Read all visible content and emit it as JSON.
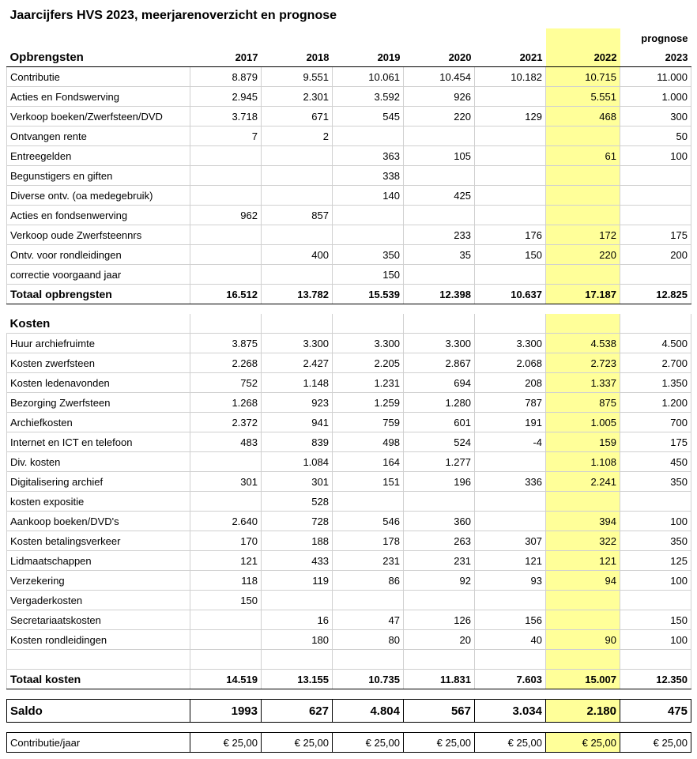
{
  "title": "Jaarcijfers HVS 2023, meerjarenoverzicht en prognose",
  "colors": {
    "highlight_bg": "#ffff99",
    "grid": "#d0d0d0",
    "text": "#000000",
    "bg": "#ffffff"
  },
  "years": [
    "2017",
    "2018",
    "2019",
    "2020",
    "2021",
    "2022",
    "2023"
  ],
  "prognose_label": "prognose",
  "highlight_year_index": 5,
  "sections": {
    "opbrengsten": {
      "header": "Opbrengsten",
      "rows": [
        {
          "label": "Contributie",
          "v": [
            "8.879",
            "9.551",
            "10.061",
            "10.454",
            "10.182",
            "10.715",
            "11.000"
          ]
        },
        {
          "label": "Acties en Fondswerving",
          "v": [
            "2.945",
            "2.301",
            "3.592",
            "926",
            "",
            "5.551",
            "1.000"
          ]
        },
        {
          "label": "Verkoop boeken/Zwerfsteen/DVD",
          "v": [
            "3.718",
            "671",
            "545",
            "220",
            "129",
            "468",
            "300"
          ]
        },
        {
          "label": "Ontvangen rente",
          "v": [
            "7",
            "2",
            "",
            "",
            "",
            "",
            "50"
          ]
        },
        {
          "label": "Entreegelden",
          "v": [
            "",
            "",
            "363",
            "105",
            "",
            "61",
            "100"
          ]
        },
        {
          "label": "Begunstigers en giften",
          "v": [
            "",
            "",
            "338",
            "",
            "",
            "",
            ""
          ]
        },
        {
          "label": "Diverse ontv. (oa medegebruik)",
          "v": [
            "",
            "",
            "140",
            "425",
            "",
            "",
            ""
          ]
        },
        {
          "label": "Acties en fondsenwerving",
          "v": [
            "962",
            "857",
            "",
            "",
            "",
            "",
            ""
          ]
        },
        {
          "label": "Verkoop oude Zwerfsteennrs",
          "v": [
            "",
            "",
            "",
            "233",
            "176",
            "172",
            "175"
          ]
        },
        {
          "label": "Ontv. voor rondleidingen",
          "v": [
            "",
            "400",
            "350",
            "35",
            "150",
            "220",
            "200"
          ]
        },
        {
          "label": "correctie voorgaand jaar",
          "v": [
            "",
            "",
            "150",
            "",
            "",
            "",
            ""
          ]
        }
      ],
      "total": {
        "label": "Totaal opbrengsten",
        "v": [
          "16.512",
          "13.782",
          "15.539",
          "12.398",
          "10.637",
          "17.187",
          "12.825"
        ]
      }
    },
    "kosten": {
      "header": "Kosten",
      "rows": [
        {
          "label": "Huur archiefruimte",
          "v": [
            "3.875",
            "3.300",
            "3.300",
            "3.300",
            "3.300",
            "4.538",
            "4.500"
          ]
        },
        {
          "label": "Kosten zwerfsteen",
          "v": [
            "2.268",
            "2.427",
            "2.205",
            "2.867",
            "2.068",
            "2.723",
            "2.700"
          ]
        },
        {
          "label": "Kosten ledenavonden",
          "v": [
            "752",
            "1.148",
            "1.231",
            "694",
            "208",
            "1.337",
            "1.350"
          ]
        },
        {
          "label": "Bezorging Zwerfsteen",
          "v": [
            "1.268",
            "923",
            "1.259",
            "1.280",
            "787",
            "875",
            "1.200"
          ]
        },
        {
          "label": "Archiefkosten",
          "v": [
            "2.372",
            "941",
            "759",
            "601",
            "191",
            "1.005",
            "700"
          ]
        },
        {
          "label": "Internet en ICT en telefoon",
          "v": [
            "483",
            "839",
            "498",
            "524",
            "-4",
            "159",
            "175"
          ]
        },
        {
          "label": "Div. kosten",
          "v": [
            "",
            "1.084",
            "164",
            "1.277",
            "",
            "1.108",
            "450"
          ]
        },
        {
          "label": "Digitalisering archief",
          "v": [
            "301",
            "301",
            "151",
            "196",
            "336",
            "2.241",
            "350"
          ]
        },
        {
          "label": "kosten expositie",
          "v": [
            "",
            "528",
            "",
            "",
            "",
            "",
            ""
          ]
        },
        {
          "label": "Aankoop boeken/DVD's",
          "v": [
            "2.640",
            "728",
            "546",
            "360",
            "",
            "394",
            "100"
          ]
        },
        {
          "label": "Kosten betalingsverkeer",
          "v": [
            "170",
            "188",
            "178",
            "263",
            "307",
            "322",
            "350"
          ]
        },
        {
          "label": "Lidmaatschappen",
          "v": [
            "121",
            "433",
            "231",
            "231",
            "121",
            "121",
            "125"
          ]
        },
        {
          "label": "Verzekering",
          "v": [
            "118",
            "119",
            "86",
            "92",
            "93",
            "94",
            "100"
          ]
        },
        {
          "label": "Vergaderkosten",
          "v": [
            "150",
            "",
            "",
            "",
            "",
            "",
            ""
          ]
        },
        {
          "label": "Secretariaatskosten",
          "v": [
            "",
            "16",
            "47",
            "126",
            "156",
            "",
            "150"
          ]
        },
        {
          "label": "Kosten rondleidingen",
          "v": [
            "",
            "180",
            "80",
            "20",
            "40",
            "90",
            "100"
          ]
        }
      ],
      "total": {
        "label": "Totaal kosten",
        "v": [
          "14.519",
          "13.155",
          "10.735",
          "11.831",
          "7.603",
          "15.007",
          "12.350"
        ]
      }
    }
  },
  "saldo": {
    "label": "Saldo",
    "v": [
      "1993",
      "627",
      "4.804",
      "567",
      "3.034",
      "2.180",
      "475"
    ]
  },
  "contributie": {
    "label": "Contributie/jaar",
    "v": [
      "€ 25,00",
      "€ 25,00",
      "€ 25,00",
      "€ 25,00",
      "€ 25,00",
      "€ 25,00",
      "€ 25,00"
    ]
  }
}
